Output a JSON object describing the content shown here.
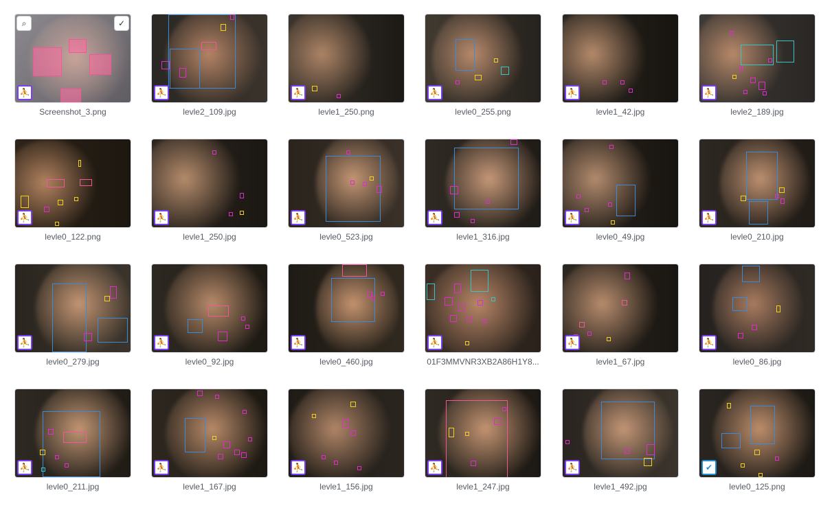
{
  "gallery": {
    "items": [
      {
        "filename": "Screenshot_3.png",
        "badge": "run-icon",
        "selected_tools": true
      },
      {
        "filename": "levle2_109.jpg",
        "badge": "run-icon"
      },
      {
        "filename": "levle1_250.png",
        "badge": "run-icon"
      },
      {
        "filename": "levle0_255.png",
        "badge": "run-icon"
      },
      {
        "filename": "levle1_42.jpg",
        "badge": "run-icon"
      },
      {
        "filename": "levle2_189.jpg",
        "badge": "run-icon"
      },
      {
        "filename": "levle0_122.png",
        "badge": "run-icon"
      },
      {
        "filename": "levle1_250.jpg",
        "badge": "run-icon"
      },
      {
        "filename": "levle0_523.jpg",
        "badge": "run-icon"
      },
      {
        "filename": "levle1_316.jpg",
        "badge": "run-icon"
      },
      {
        "filename": "levle0_49.jpg",
        "badge": "run-icon"
      },
      {
        "filename": "levle0_210.jpg",
        "badge": "run-icon"
      },
      {
        "filename": "levle0_279.jpg",
        "badge": "run-icon"
      },
      {
        "filename": "levle0_92.jpg",
        "badge": "run-icon"
      },
      {
        "filename": "levle0_460.jpg",
        "badge": "run-icon"
      },
      {
        "filename": "01F3MMVNR3XB2A86H1Y8...",
        "badge": "run-icon"
      },
      {
        "filename": "levle1_67.jpg",
        "badge": "run-icon"
      },
      {
        "filename": "levle0_86.jpg",
        "badge": "run-icon"
      },
      {
        "filename": "levle0_211.jpg",
        "badge": "run-icon"
      },
      {
        "filename": "levle1_167.jpg",
        "badge": "run-icon"
      },
      {
        "filename": "levle1_156.jpg",
        "badge": "run-icon"
      },
      {
        "filename": "levle1_247.jpg",
        "badge": "run-icon"
      },
      {
        "filename": "levle1_492.jpg",
        "badge": "run-icon"
      },
      {
        "filename": "levle0_125.png",
        "badge": "shield-icon"
      }
    ]
  },
  "colors": {
    "badge_border": "#7b3ff2",
    "box_magenta": "#e12bd1",
    "box_yellow": "#f2d21c",
    "box_blue": "#3b8bd8",
    "box_cyan": "#35c7c7"
  }
}
